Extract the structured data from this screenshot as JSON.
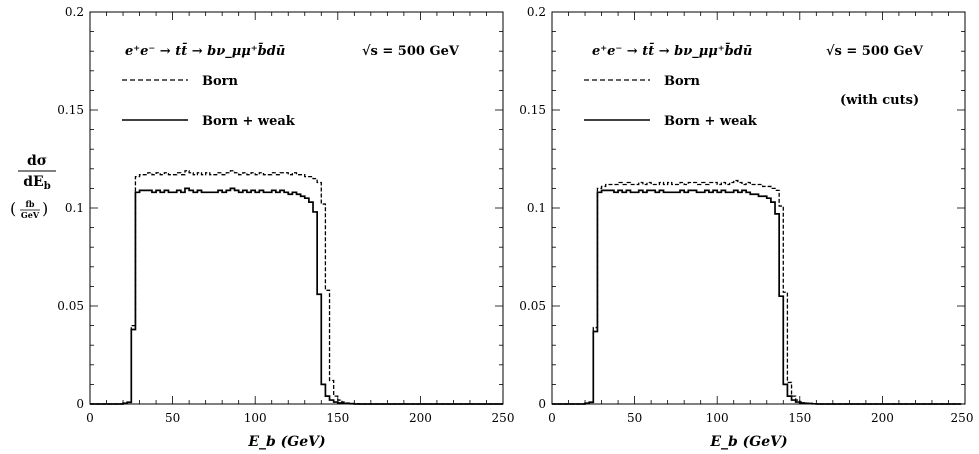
{
  "y_axis_label": {
    "num": "dσ",
    "den_d": "dE",
    "den_sub": "b",
    "unit_num": "fb",
    "unit_den": "GeV"
  },
  "chart_data": [
    {
      "type": "line",
      "title": "",
      "process": "e⁺e⁻ → tt̄ → bν_μμ⁺b̄dū",
      "energy": "√s = 500 GeV",
      "note": "",
      "xlabel": "E_b (GeV)",
      "xlim": [
        0,
        250
      ],
      "ylim": [
        0,
        0.2
      ],
      "xticks": [
        "0",
        "50",
        "100",
        "150",
        "200",
        "250"
      ],
      "yticks": [
        "0",
        "0.05",
        "0.1",
        "0.15",
        "0.2"
      ],
      "legend_position": "top-left",
      "x_edges": [
        0,
        2.5,
        5,
        7.5,
        10,
        12.5,
        15,
        17.5,
        20,
        22.5,
        25,
        27.5,
        30,
        32.5,
        35,
        37.5,
        40,
        42.5,
        45,
        47.5,
        50,
        52.5,
        55,
        57.5,
        60,
        62.5,
        65,
        67.5,
        70,
        72.5,
        75,
        77.5,
        80,
        82.5,
        85,
        87.5,
        90,
        92.5,
        95,
        97.5,
        100,
        102.5,
        105,
        107.5,
        110,
        112.5,
        115,
        117.5,
        120,
        122.5,
        125,
        127.5,
        130,
        132.5,
        135,
        137.5,
        140,
        142.5,
        145,
        147.5,
        150,
        152.5,
        155,
        157.5,
        160,
        162.5,
        165,
        167.5,
        170,
        172.5,
        175,
        177.5,
        180,
        182.5,
        185,
        187.5,
        190,
        192.5,
        195,
        197.5,
        200,
        202.5,
        205,
        207.5,
        210,
        212.5,
        215,
        217.5,
        220,
        222.5,
        225,
        227.5,
        230,
        232.5,
        235,
        237.5,
        240,
        242.5,
        245,
        247.5,
        250
      ],
      "series": [
        {
          "name": "Born",
          "style": "dashed",
          "values": [
            0,
            0,
            0,
            0,
            0,
            0,
            0,
            0,
            0.0004,
            0.0009,
            0.04,
            0.116,
            0.117,
            0.117,
            0.118,
            0.117,
            0.118,
            0.117,
            0.118,
            0.117,
            0.117,
            0.118,
            0.117,
            0.119,
            0.118,
            0.117,
            0.118,
            0.117,
            0.118,
            0.117,
            0.117,
            0.118,
            0.117,
            0.118,
            0.119,
            0.118,
            0.117,
            0.118,
            0.117,
            0.118,
            0.117,
            0.118,
            0.117,
            0.117,
            0.118,
            0.117,
            0.118,
            0.118,
            0.117,
            0.118,
            0.117,
            0.117,
            0.116,
            0.116,
            0.115,
            0.113,
            0.102,
            0.058,
            0.012,
            0.004,
            0.002,
            0.001,
            0.0005,
            0.0003,
            0.0002,
            0.0001,
            0,
            0,
            0,
            0,
            0,
            0,
            0,
            0,
            0,
            0,
            0,
            0,
            0,
            0,
            0,
            0,
            0,
            0,
            0,
            0,
            0,
            0,
            0,
            0,
            0,
            0,
            0,
            0,
            0,
            0,
            0,
            0,
            0,
            0
          ]
        },
        {
          "name": "Born + weak",
          "style": "solid",
          "values": [
            0,
            0,
            0,
            0,
            0,
            0,
            0,
            0,
            0.0004,
            0.0009,
            0.038,
            0.108,
            0.109,
            0.109,
            0.109,
            0.108,
            0.109,
            0.108,
            0.109,
            0.108,
            0.108,
            0.109,
            0.108,
            0.11,
            0.109,
            0.108,
            0.109,
            0.108,
            0.108,
            0.108,
            0.108,
            0.109,
            0.108,
            0.109,
            0.11,
            0.109,
            0.108,
            0.109,
            0.108,
            0.109,
            0.108,
            0.109,
            0.108,
            0.108,
            0.109,
            0.108,
            0.109,
            0.108,
            0.107,
            0.108,
            0.107,
            0.106,
            0.105,
            0.103,
            0.098,
            0.056,
            0.01,
            0.004,
            0.002,
            0.001,
            0.0005,
            0.0003,
            0.0002,
            0.0001,
            0,
            0,
            0,
            0,
            0,
            0,
            0,
            0,
            0,
            0,
            0,
            0,
            0,
            0,
            0,
            0,
            0,
            0,
            0,
            0,
            0,
            0,
            0,
            0,
            0,
            0,
            0,
            0,
            0,
            0,
            0,
            0,
            0,
            0,
            0,
            0
          ]
        }
      ]
    },
    {
      "type": "line",
      "title": "",
      "process": "e⁺e⁻ → tt̄ → bν_μμ⁺b̄dū",
      "energy": "√s = 500 GeV",
      "note": "(with cuts)",
      "xlabel": "E_b (GeV)",
      "xlim": [
        0,
        250
      ],
      "ylim": [
        0,
        0.2
      ],
      "xticks": [
        "0",
        "50",
        "100",
        "150",
        "200",
        "250"
      ],
      "yticks": [
        "0",
        "0.05",
        "0.1",
        "0.15",
        "0.2"
      ],
      "legend_position": "top-left",
      "x_edges": [
        0,
        2.5,
        5,
        7.5,
        10,
        12.5,
        15,
        17.5,
        20,
        22.5,
        25,
        27.5,
        30,
        32.5,
        35,
        37.5,
        40,
        42.5,
        45,
        47.5,
        50,
        52.5,
        55,
        57.5,
        60,
        62.5,
        65,
        67.5,
        70,
        72.5,
        75,
        77.5,
        80,
        82.5,
        85,
        87.5,
        90,
        92.5,
        95,
        97.5,
        100,
        102.5,
        105,
        107.5,
        110,
        112.5,
        115,
        117.5,
        120,
        122.5,
        125,
        127.5,
        130,
        132.5,
        135,
        137.5,
        140,
        142.5,
        145,
        147.5,
        150,
        152.5,
        155,
        157.5,
        160,
        162.5,
        165,
        167.5,
        170,
        172.5,
        175,
        177.5,
        180,
        182.5,
        185,
        187.5,
        190,
        192.5,
        195,
        197.5,
        200,
        202.5,
        205,
        207.5,
        210,
        212.5,
        215,
        217.5,
        220,
        222.5,
        225,
        227.5,
        230,
        232.5,
        235,
        237.5,
        240,
        242.5,
        245,
        247.5,
        250
      ],
      "series": [
        {
          "name": "Born",
          "style": "dashed",
          "values": [
            0,
            0,
            0,
            0,
            0,
            0,
            0,
            0,
            0.0004,
            0.0009,
            0.039,
            0.11,
            0.111,
            0.112,
            0.112,
            0.112,
            0.113,
            0.112,
            0.113,
            0.112,
            0.112,
            0.113,
            0.112,
            0.113,
            0.112,
            0.112,
            0.113,
            0.112,
            0.113,
            0.112,
            0.112,
            0.113,
            0.112,
            0.113,
            0.113,
            0.112,
            0.113,
            0.112,
            0.113,
            0.113,
            0.112,
            0.113,
            0.112,
            0.113,
            0.114,
            0.113,
            0.112,
            0.113,
            0.112,
            0.112,
            0.112,
            0.111,
            0.111,
            0.11,
            0.109,
            0.101,
            0.057,
            0.011,
            0.004,
            0.002,
            0.001,
            0.0005,
            0.0003,
            0.0002,
            0.0001,
            0,
            0,
            0,
            0,
            0,
            0,
            0,
            0,
            0,
            0,
            0,
            0,
            0,
            0,
            0,
            0,
            0,
            0,
            0,
            0,
            0,
            0,
            0,
            0,
            0,
            0,
            0,
            0,
            0,
            0,
            0,
            0,
            0,
            0,
            0
          ]
        },
        {
          "name": "Born + weak",
          "style": "solid",
          "values": [
            0,
            0,
            0,
            0,
            0,
            0,
            0,
            0,
            0.0004,
            0.0009,
            0.037,
            0.108,
            0.109,
            0.109,
            0.109,
            0.108,
            0.109,
            0.108,
            0.109,
            0.108,
            0.108,
            0.109,
            0.108,
            0.109,
            0.109,
            0.108,
            0.109,
            0.108,
            0.108,
            0.108,
            0.108,
            0.109,
            0.108,
            0.109,
            0.109,
            0.108,
            0.108,
            0.109,
            0.108,
            0.109,
            0.108,
            0.109,
            0.108,
            0.108,
            0.109,
            0.108,
            0.109,
            0.108,
            0.107,
            0.107,
            0.106,
            0.106,
            0.105,
            0.103,
            0.097,
            0.055,
            0.01,
            0.004,
            0.002,
            0.001,
            0.0005,
            0.0003,
            0.0002,
            0.0001,
            0,
            0,
            0,
            0,
            0,
            0,
            0,
            0,
            0,
            0,
            0,
            0,
            0,
            0,
            0,
            0,
            0,
            0,
            0,
            0,
            0,
            0,
            0,
            0,
            0,
            0,
            0,
            0,
            0,
            0,
            0,
            0,
            0,
            0,
            0
          ]
        }
      ]
    }
  ]
}
